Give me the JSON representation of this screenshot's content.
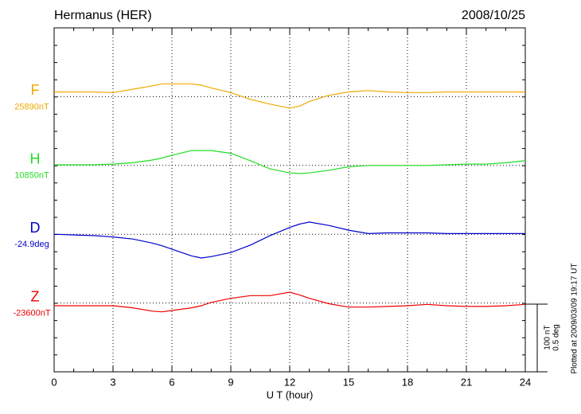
{
  "chart_data": {
    "type": "line",
    "title": "Hermanus (HER)",
    "date": "2008/10/25",
    "x_label": "U T (hour)",
    "footnote": "Plotted at 2009/03/09 19:17 UT",
    "x": [
      0,
      1,
      2,
      3,
      4,
      5,
      5.5,
      6,
      7,
      7.5,
      8,
      9,
      10,
      11,
      12,
      12.5,
      13,
      14,
      15,
      16,
      17,
      18,
      19,
      20,
      21,
      22,
      23,
      24
    ],
    "xlim": [
      0,
      24
    ],
    "xticks": [
      0,
      3,
      6,
      9,
      12,
      15,
      18,
      21,
      24
    ],
    "grid": true,
    "scale": [
      {
        "value": 100,
        "label": "100 nT"
      },
      {
        "value": 0.5,
        "label": "0.5 deg"
      }
    ],
    "series": [
      {
        "name": "F",
        "label": "25890nT",
        "color": "#f0a800",
        "scale_index": 0,
        "values": [
          7,
          7,
          7,
          6,
          11,
          16,
          19,
          19,
          19,
          17,
          13,
          6,
          -4,
          -11,
          -17,
          -14,
          -7,
          2,
          7,
          9,
          7,
          6,
          6,
          7,
          7,
          7,
          7,
          7
        ]
      },
      {
        "name": "H",
        "label": "10850nT",
        "color": "#22dd22",
        "scale_index": 0,
        "values": [
          1,
          1,
          1,
          2,
          4,
          8,
          11,
          15,
          22,
          22,
          22,
          18,
          7,
          -5,
          -11,
          -12,
          -11,
          -7,
          -2,
          0,
          0,
          0,
          0,
          1,
          2,
          2,
          4,
          7
        ]
      },
      {
        "name": "D",
        "label": "-24.9deg",
        "color": "#0000cc",
        "scale_index": 1,
        "values": [
          0,
          -0.005,
          -0.01,
          -0.02,
          -0.035,
          -0.065,
          -0.085,
          -0.11,
          -0.16,
          -0.175,
          -0.165,
          -0.135,
          -0.08,
          -0.01,
          0.05,
          0.075,
          0.09,
          0.065,
          0.03,
          0.005,
          0.01,
          0.01,
          0.01,
          0.005,
          0.005,
          0.005,
          0.005,
          0.005
        ]
      },
      {
        "name": "Z",
        "label": "-23600nT",
        "color": "#ee0000",
        "scale_index": 0,
        "values": [
          -4,
          -4,
          -4,
          -4,
          -7,
          -12,
          -13,
          -11,
          -7,
          -4,
          1,
          7,
          11,
          11,
          16,
          12,
          7,
          -1,
          -6,
          -6,
          -5,
          -4,
          -2,
          -4,
          -5,
          -5,
          -4,
          -2
        ]
      }
    ]
  }
}
